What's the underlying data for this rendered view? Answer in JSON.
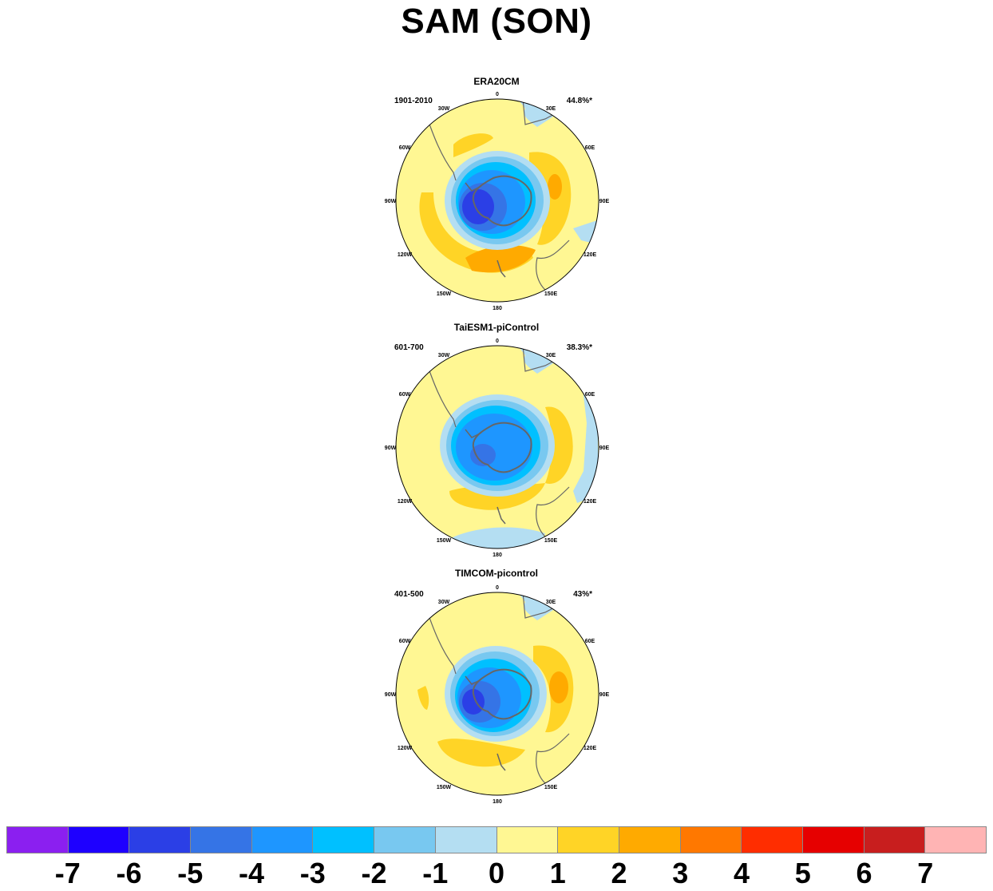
{
  "title": "SAM (SON)",
  "panels": [
    {
      "title": "ERA20CM",
      "period": "1901-2010",
      "variance": "44.8%*"
    },
    {
      "title": "TaiESM1-piControl",
      "period": "601-700",
      "variance": "38.3%*"
    },
    {
      "title": "TIMCOM-picontrol",
      "period": "401-500",
      "variance": "43%*"
    }
  ],
  "lon_labels": [
    "0",
    "30E",
    "60E",
    "90E",
    "120E",
    "150E",
    "180",
    "150W",
    "120W",
    "90W",
    "60W",
    "30W"
  ],
  "colorbar": {
    "colors": [
      "#8b1ff0",
      "#1e00ff",
      "#2b3fe6",
      "#3574e6",
      "#1e96ff",
      "#00c0ff",
      "#78c8f0",
      "#b4def2",
      "#fff793",
      "#ffd426",
      "#ffaa00",
      "#ff7800",
      "#ff2d00",
      "#e60000",
      "#c81e1e",
      "#ffb4b4"
    ],
    "labels": [
      "-7",
      "-6",
      "-5",
      "-4",
      "-3",
      "-2",
      "-1",
      "0",
      "1",
      "2",
      "3",
      "4",
      "5",
      "6",
      "7"
    ]
  }
}
